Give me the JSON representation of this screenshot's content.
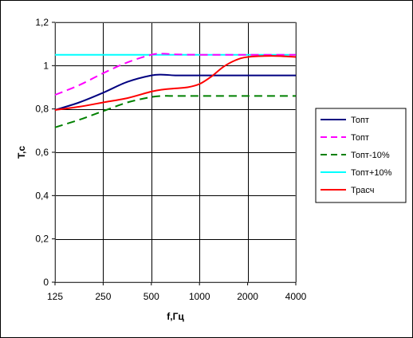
{
  "chart_data": {
    "type": "line",
    "xlabel": "f,Гц",
    "ylabel": "T,c",
    "x_categories": [
      "125",
      "250",
      "500",
      "1000",
      "2000",
      "4000"
    ],
    "y_ticks": [
      "0",
      "0,2",
      "0,4",
      "0,6",
      "0,8",
      "1",
      "1,2"
    ],
    "ylim": [
      0,
      1.2
    ],
    "grid": true,
    "legend_position": "right",
    "series": [
      {
        "name": "Топт",
        "color": "#000080",
        "dash": "solid",
        "x": [
          125,
          177,
          250,
          354,
          500,
          595,
          707,
          1000,
          2000,
          4000
        ],
        "values": [
          0.795,
          0.83,
          0.875,
          0.925,
          0.955,
          0.958,
          0.955,
          0.955,
          0.955,
          0.955
        ]
      },
      {
        "name": "Топт",
        "color": "#ff00ff",
        "dash": "dashed",
        "x": [
          125,
          177,
          250,
          354,
          500,
          595,
          707,
          1000,
          2000,
          4000
        ],
        "values": [
          0.865,
          0.91,
          0.965,
          1.015,
          1.05,
          1.055,
          1.052,
          1.05,
          1.05,
          1.05
        ]
      },
      {
        "name": "Топт-10%",
        "color": "#008000",
        "dash": "dashed",
        "x": [
          125,
          177,
          250,
          354,
          500,
          595,
          707,
          1000,
          2000,
          4000
        ],
        "values": [
          0.715,
          0.75,
          0.79,
          0.83,
          0.855,
          0.86,
          0.86,
          0.86,
          0.86,
          0.86
        ]
      },
      {
        "name": "Топт+10%",
        "color": "#00ffff",
        "dash": "solid",
        "x": [
          125,
          177,
          250,
          354,
          500,
          595,
          707,
          1000,
          2000,
          4000
        ],
        "values": [
          1.05,
          1.05,
          1.05,
          1.05,
          1.05,
          1.05,
          1.05,
          1.05,
          1.05,
          1.05
        ]
      },
      {
        "name": "Трасч",
        "color": "#ff0000",
        "dash": "solid",
        "x": [
          125,
          177,
          250,
          354,
          500,
          595,
          707,
          841,
          1000,
          1189,
          1414,
          1682,
          2000,
          2828,
          4000
        ],
        "values": [
          0.795,
          0.81,
          0.83,
          0.85,
          0.88,
          0.89,
          0.895,
          0.9,
          0.915,
          0.95,
          0.995,
          1.025,
          1.04,
          1.045,
          1.04
        ]
      }
    ]
  }
}
